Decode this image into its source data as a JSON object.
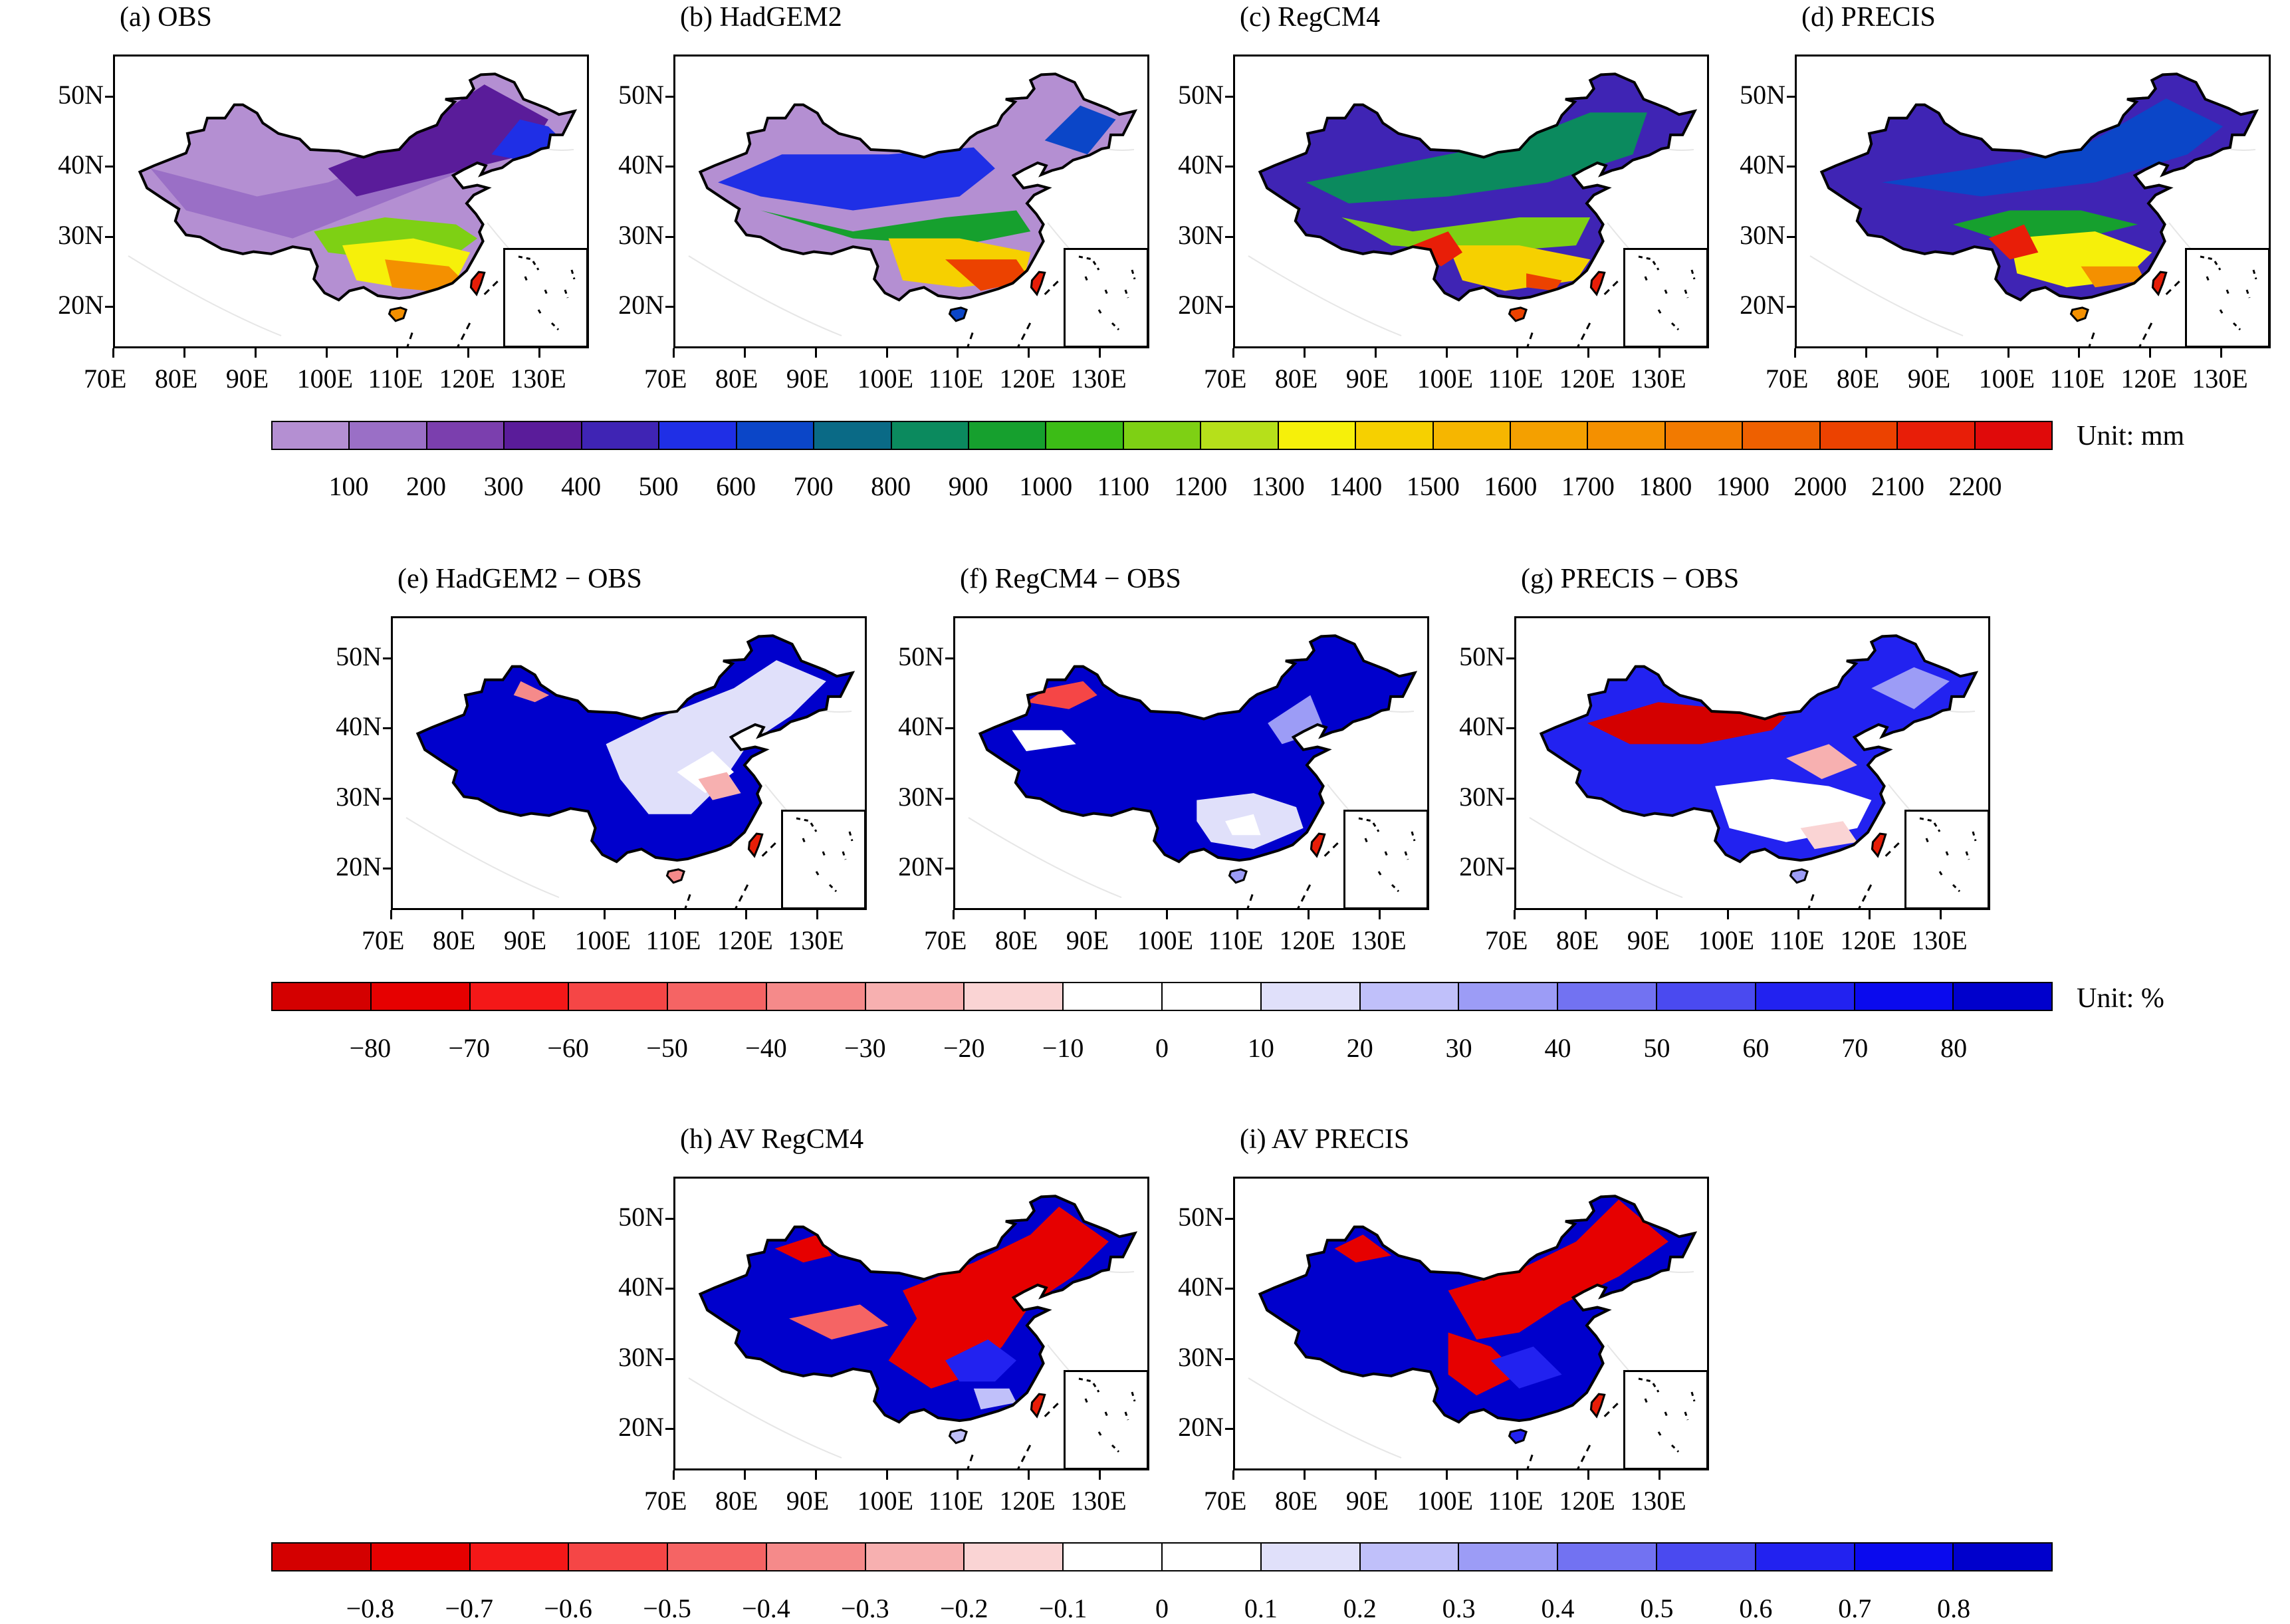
{
  "axes": {
    "lon_labels": [
      "70E",
      "80E",
      "90E",
      "100E",
      "110E",
      "120E",
      "130E"
    ],
    "lat_labels": [
      "50N",
      "40N",
      "30N",
      "20N"
    ]
  },
  "row1": {
    "panels": [
      {
        "title": "(a) OBS",
        "scheme": "precip_obs"
      },
      {
        "title": "(b) HadGEM2",
        "scheme": "precip_had"
      },
      {
        "title": "(c) RegCM4",
        "scheme": "precip_reg"
      },
      {
        "title": "(d) PRECIS",
        "scheme": "precip_pre"
      }
    ],
    "colorbar": {
      "unit": "Unit: mm",
      "labels": [
        "100",
        "200",
        "300",
        "400",
        "500",
        "600",
        "700",
        "800",
        "900",
        "1000",
        "1100",
        "1200",
        "1300",
        "1400",
        "1500",
        "1600",
        "1700",
        "1800",
        "1900",
        "2000",
        "2100",
        "2200"
      ],
      "colors": [
        "#b48fd2",
        "#9a6fc6",
        "#7b3fae",
        "#5a1c9a",
        "#3f24b4",
        "#1f2fe6",
        "#0b46c8",
        "#0a6a86",
        "#0b8a5e",
        "#16a02e",
        "#3cbc16",
        "#7ed014",
        "#b6e01a",
        "#f6f00a",
        "#f6d000",
        "#f6b600",
        "#f4a000",
        "#f49000",
        "#f27a00",
        "#ee6000",
        "#ec4200",
        "#e81e08",
        "#e00a0a"
      ]
    }
  },
  "row2": {
    "panels": [
      {
        "title": "(e) HadGEM2 − OBS",
        "scheme": "bias_had"
      },
      {
        "title": "(f) RegCM4 − OBS",
        "scheme": "bias_reg"
      },
      {
        "title": "(g) PRECIS − OBS",
        "scheme": "bias_pre"
      }
    ],
    "colorbar": {
      "unit": "Unit: %",
      "labels": [
        "−80",
        "−70",
        "−60",
        "−50",
        "−40",
        "−30",
        "−20",
        "−10",
        "0",
        "10",
        "20",
        "30",
        "40",
        "50",
        "60",
        "70",
        "80"
      ],
      "colors": [
        "#d40000",
        "#e60000",
        "#f41818",
        "#f54646",
        "#f56464",
        "#f58a8a",
        "#f7b0b0",
        "#fad4d4",
        "#ffffff",
        "#ffffff",
        "#e0e0fa",
        "#c0c0fa",
        "#9c9cf6",
        "#7272f2",
        "#4a4af0",
        "#2222f0",
        "#0a0aee",
        "#0000cc"
      ]
    }
  },
  "row3": {
    "panels": [
      {
        "title": "(h) AV RegCM4",
        "scheme": "av_reg"
      },
      {
        "title": "(i) AV PRECIS",
        "scheme": "av_pre"
      }
    ],
    "colorbar": {
      "labels": [
        "−0.8",
        "−0.7",
        "−0.6",
        "−0.5",
        "−0.4",
        "−0.3",
        "−0.2",
        "−0.1",
        "0",
        "0.1",
        "0.2",
        "0.3",
        "0.4",
        "0.5",
        "0.6",
        "0.7",
        "0.8"
      ],
      "colors": [
        "#d40000",
        "#e60000",
        "#f41818",
        "#f54646",
        "#f56464",
        "#f58a8a",
        "#f7b0b0",
        "#fad4d4",
        "#ffffff",
        "#ffffff",
        "#e0e0fa",
        "#c0c0fa",
        "#9c9cf6",
        "#7272f2",
        "#4a4af0",
        "#2222f0",
        "#0a0aee",
        "#0000cc"
      ]
    }
  }
}
